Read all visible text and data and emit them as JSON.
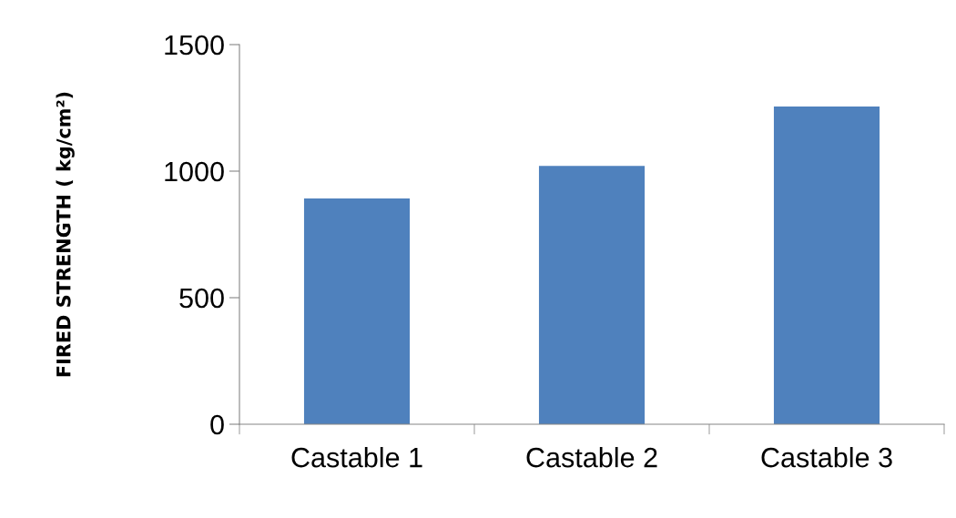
{
  "chart_data": {
    "type": "bar",
    "ylabel": "FIRED STRENGTH ( kg/cm²)",
    "categories": [
      "Castable 1",
      "Castable 2",
      "Castable 3"
    ],
    "values": [
      892,
      1021,
      1255
    ],
    "color": "#4f81bd",
    "ylim": [
      0,
      1500
    ],
    "yticks": [
      0,
      500,
      1000,
      1500
    ],
    "grid": false
  }
}
